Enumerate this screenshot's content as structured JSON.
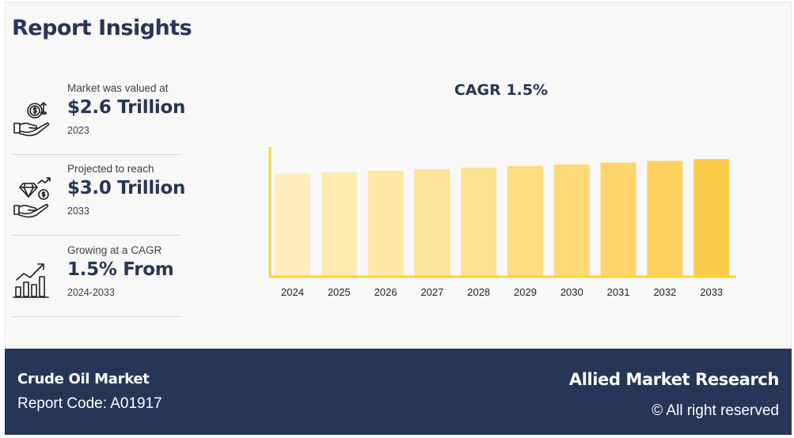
{
  "heading": "Report Insights",
  "stats": [
    {
      "label": "Market was valued at",
      "value": "$2.6 Trillion",
      "sub": "2023",
      "icon": "money-hand-icon"
    },
    {
      "label": "Projected to reach",
      "value": "$3.0 Trillion",
      "sub": "2033",
      "icon": "diamond-hand-icon"
    },
    {
      "label": "Growing at a CAGR",
      "value": "1.5% From",
      "sub": "2024-2033",
      "icon": "growth-chart-icon"
    }
  ],
  "chart_data": {
    "type": "bar",
    "title": "CAGR 1.5%",
    "categories": [
      "2024",
      "2025",
      "2026",
      "2027",
      "2028",
      "2029",
      "2030",
      "2031",
      "2032",
      "2033"
    ],
    "values": [
      2.64,
      2.68,
      2.72,
      2.76,
      2.8,
      2.84,
      2.88,
      2.93,
      2.97,
      3.02
    ],
    "ylim": [
      0,
      3.45
    ],
    "xlabel": "",
    "ylabel": "",
    "grid": false,
    "colors": [
      "#fdedbb",
      "#fdebb0",
      "#fde8a6",
      "#fde49b",
      "#fde090",
      "#fddc84",
      "#fdd978",
      "#fdd56b",
      "#fdd15d",
      "#fdcc4a"
    ],
    "axis_color": "#fdd23a"
  },
  "footer": {
    "market": "Crude Oil Market",
    "report_code": "Report Code: A01917",
    "brand": "Allied Market Research",
    "rights": "© All right reserved"
  }
}
